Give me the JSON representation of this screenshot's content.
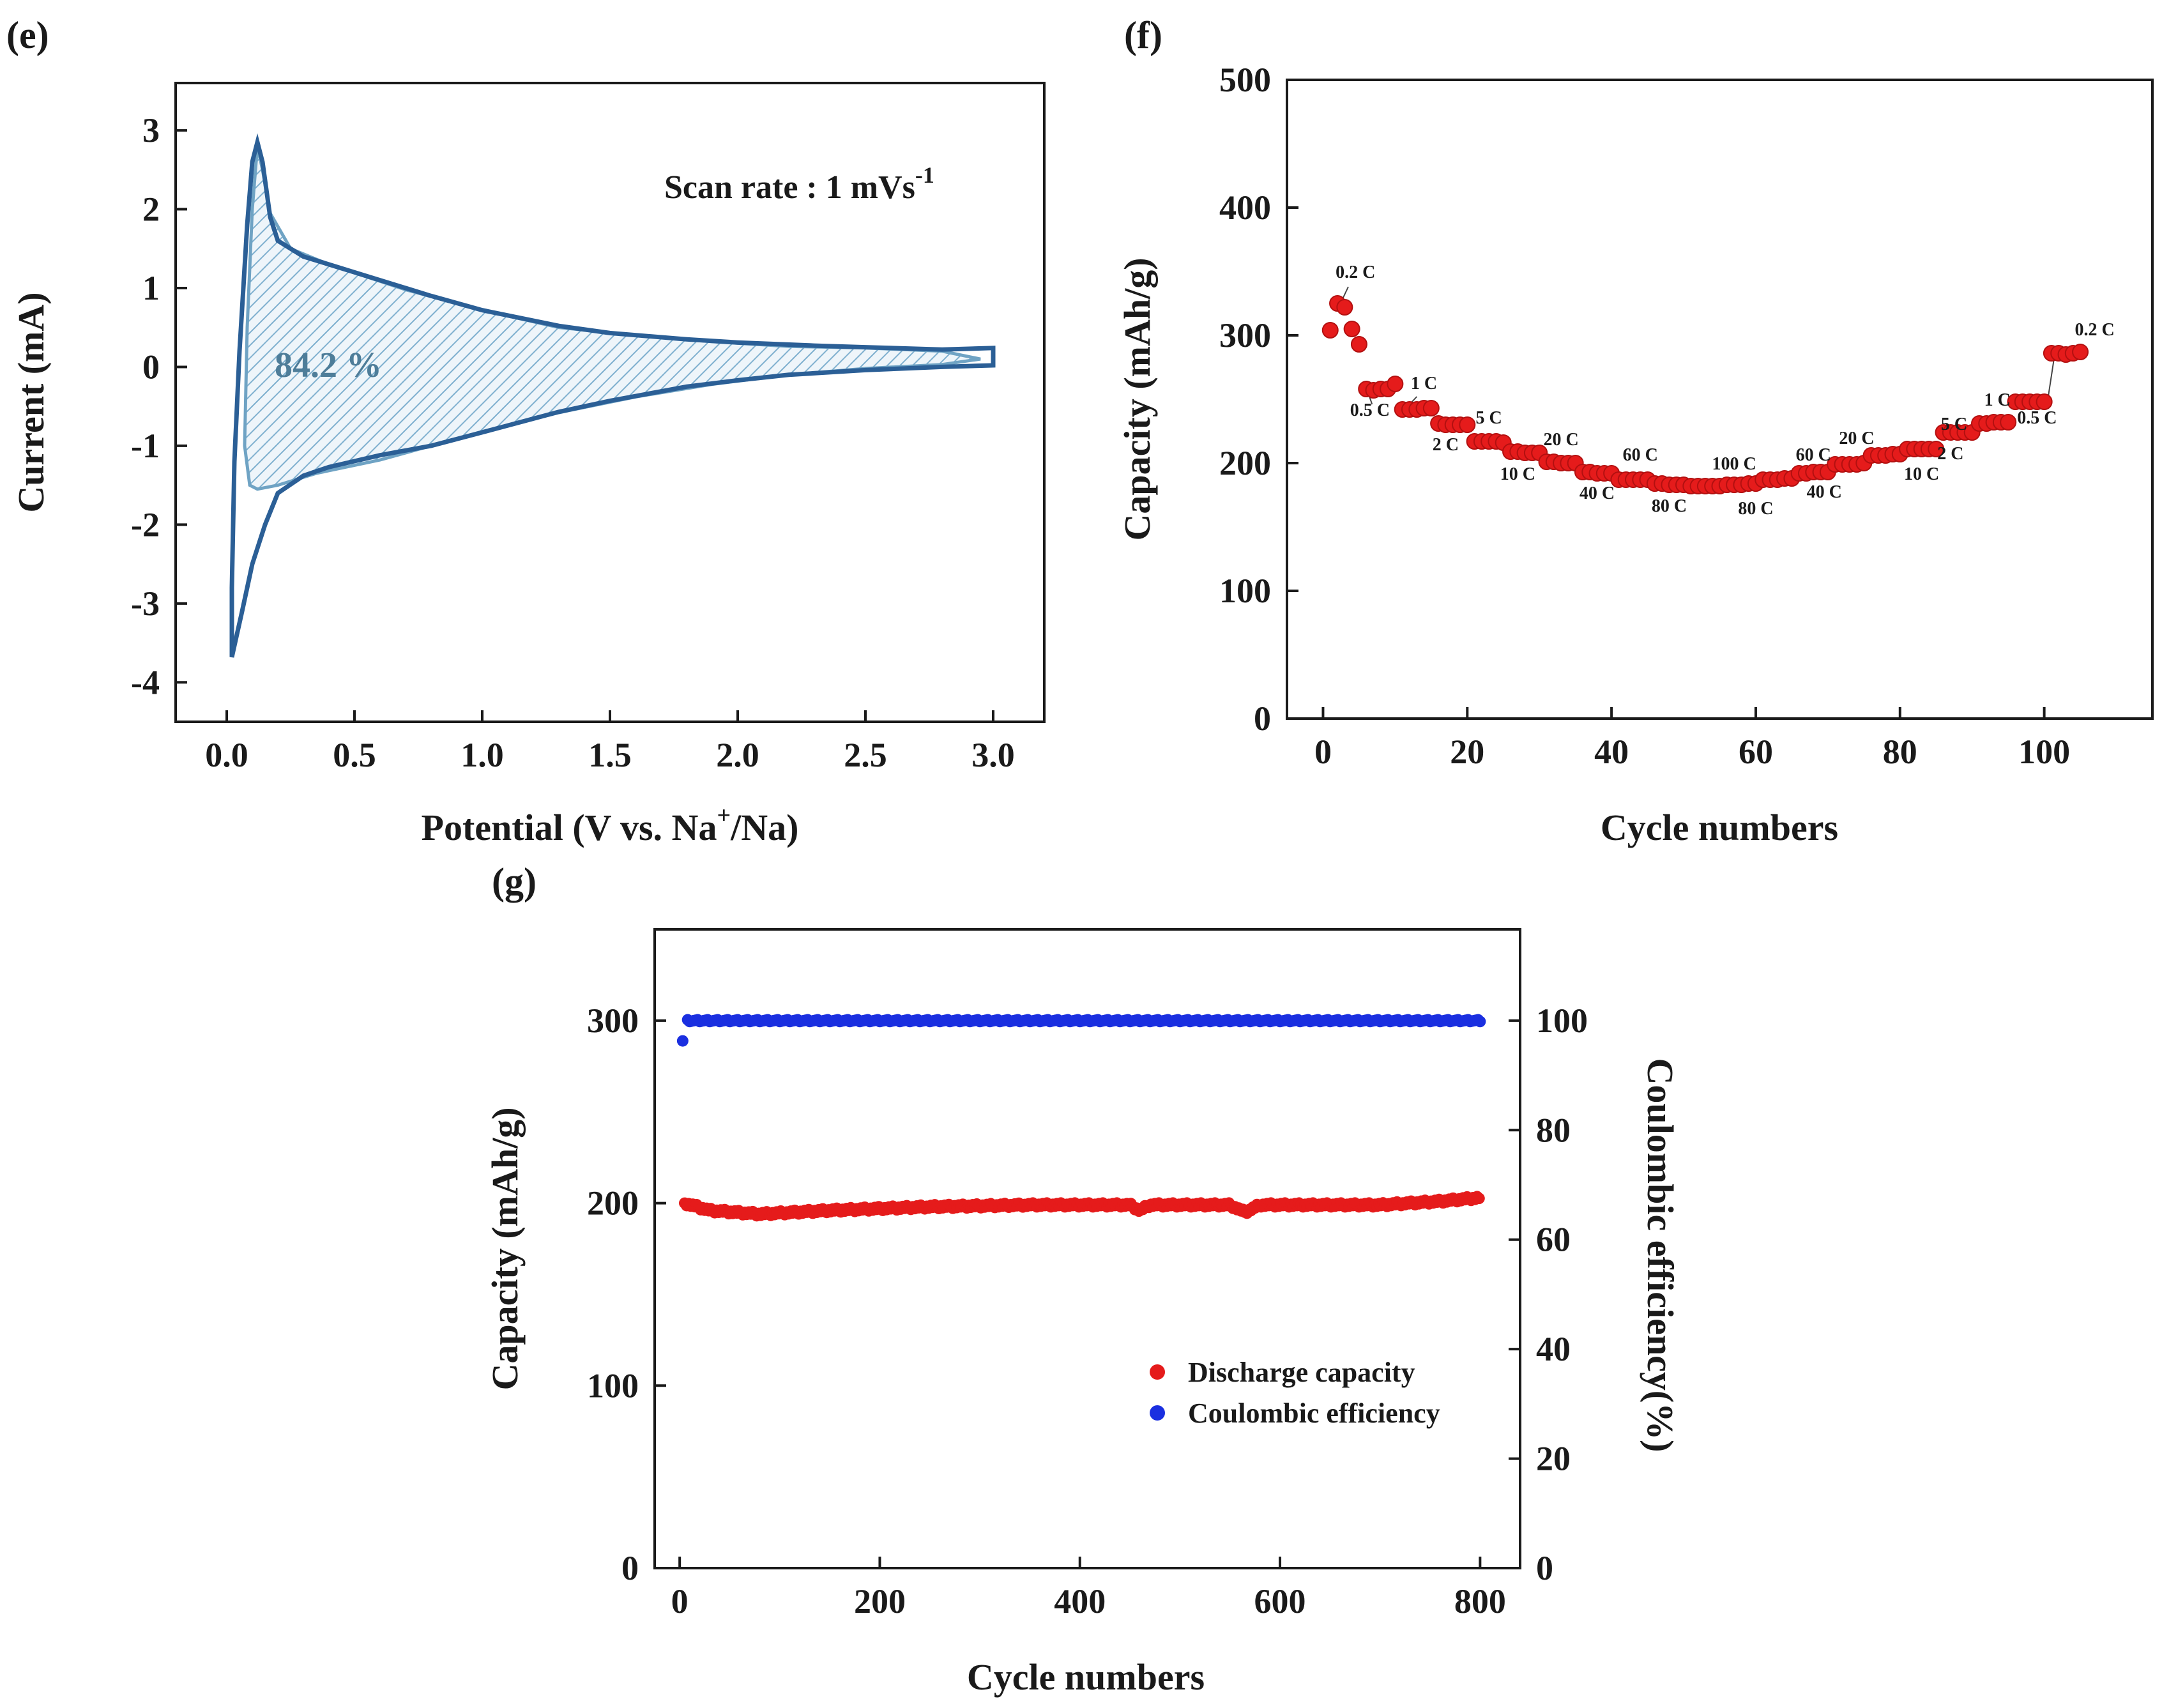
{
  "chart_data": [
    {
      "panel": "(e)",
      "type": "line",
      "xlabel_main": "Potential (V vs. Na",
      "xlabel_sup": "+",
      "xlabel_tail": "/Na)",
      "ylabel": "Current (mA)",
      "xlim": [
        -0.2,
        3.2
      ],
      "ylim": [
        -4.5,
        3.6
      ],
      "xticks": [
        "0.0",
        "0.5",
        "1.0",
        "1.5",
        "2.0",
        "2.5",
        "3.0"
      ],
      "xtick_values": [
        0,
        0.5,
        1.0,
        1.5,
        2.0,
        2.5,
        3.0
      ],
      "yticks": [
        "3",
        "2",
        "1",
        "0",
        "-1",
        "-2",
        "-3",
        "-4"
      ],
      "ytick_values": [
        3,
        2,
        1,
        0,
        -1,
        -2,
        -3,
        -4
      ],
      "annotation_main": "Scan rate : 1 mVs",
      "annotation_sup": "-1",
      "capacitive_label": "84.2 %",
      "line_color": "#2b5f96",
      "fill_color": "#6fa3c4",
      "outer_curve": [
        [
          0.02,
          -3.68
        ],
        [
          0.02,
          -2.8
        ],
        [
          0.03,
          -1.2
        ],
        [
          0.05,
          0.2
        ],
        [
          0.08,
          1.8
        ],
        [
          0.1,
          2.6
        ],
        [
          0.12,
          2.85
        ],
        [
          0.14,
          2.6
        ],
        [
          0.17,
          1.9
        ],
        [
          0.2,
          1.6
        ],
        [
          0.3,
          1.4
        ],
        [
          0.5,
          1.2
        ],
        [
          0.8,
          0.9
        ],
        [
          1.0,
          0.72
        ],
        [
          1.3,
          0.52
        ],
        [
          1.5,
          0.43
        ],
        [
          1.8,
          0.35
        ],
        [
          2.0,
          0.31
        ],
        [
          2.3,
          0.27
        ],
        [
          2.5,
          0.25
        ],
        [
          2.8,
          0.22
        ],
        [
          3.0,
          0.24
        ],
        [
          3.0,
          0.02
        ],
        [
          2.8,
          0.0
        ],
        [
          2.5,
          -0.04
        ],
        [
          2.2,
          -0.1
        ],
        [
          2.0,
          -0.17
        ],
        [
          1.8,
          -0.25
        ],
        [
          1.5,
          -0.43
        ],
        [
          1.3,
          -0.57
        ],
        [
          1.0,
          -0.83
        ],
        [
          0.8,
          -1.0
        ],
        [
          0.6,
          -1.12
        ],
        [
          0.4,
          -1.27
        ],
        [
          0.3,
          -1.38
        ],
        [
          0.2,
          -1.6
        ],
        [
          0.15,
          -2.0
        ],
        [
          0.1,
          -2.5
        ],
        [
          0.06,
          -3.1
        ],
        [
          0.02,
          -3.68
        ]
      ],
      "inner_curve": [
        [
          0.12,
          2.8
        ],
        [
          0.1,
          2.0
        ],
        [
          0.08,
          0.5
        ],
        [
          0.07,
          -1.0
        ],
        [
          0.09,
          -1.5
        ],
        [
          0.12,
          -1.55
        ],
        [
          0.2,
          -1.5
        ],
        [
          0.35,
          -1.35
        ],
        [
          0.6,
          -1.18
        ],
        [
          0.8,
          -1.0
        ],
        [
          1.0,
          -0.82
        ],
        [
          1.3,
          -0.58
        ],
        [
          1.6,
          -0.38
        ],
        [
          1.9,
          -0.22
        ],
        [
          2.2,
          -0.1
        ],
        [
          2.5,
          -0.02
        ],
        [
          2.8,
          0.03
        ],
        [
          2.95,
          0.1
        ],
        [
          2.8,
          0.2
        ],
        [
          2.5,
          0.24
        ],
        [
          2.2,
          0.26
        ],
        [
          1.9,
          0.32
        ],
        [
          1.6,
          0.4
        ],
        [
          1.3,
          0.5
        ],
        [
          1.0,
          0.72
        ],
        [
          0.7,
          0.98
        ],
        [
          0.4,
          1.3
        ],
        [
          0.25,
          1.5
        ],
        [
          0.17,
          1.95
        ],
        [
          0.14,
          2.5
        ],
        [
          0.12,
          2.8
        ]
      ]
    },
    {
      "panel": "(f)",
      "type": "scatter",
      "xlabel": "Cycle numbers",
      "ylabel": "Capacity (mAh/g)",
      "xlim": [
        -5,
        115
      ],
      "ylim": [
        0,
        500
      ],
      "xticks": [
        "0",
        "20",
        "40",
        "60",
        "80",
        "100"
      ],
      "xtick_values": [
        0,
        20,
        40,
        60,
        80,
        100
      ],
      "yticks": [
        "500",
        "400",
        "300",
        "200",
        "100",
        "0"
      ],
      "ytick_values": [
        500,
        400,
        300,
        200,
        100,
        0
      ],
      "marker_color": "#e51b1b",
      "points": [
        [
          1,
          304
        ],
        [
          2,
          325
        ],
        [
          3,
          322
        ],
        [
          4,
          305
        ],
        [
          5,
          293
        ],
        [
          6,
          258
        ],
        [
          7,
          257
        ],
        [
          8,
          258
        ],
        [
          9,
          258
        ],
        [
          10,
          262
        ],
        [
          11,
          242
        ],
        [
          12,
          242
        ],
        [
          13,
          242
        ],
        [
          14,
          243
        ],
        [
          15,
          243
        ],
        [
          16,
          231
        ],
        [
          17,
          230
        ],
        [
          18,
          230
        ],
        [
          19,
          230
        ],
        [
          20,
          230
        ],
        [
          21,
          217
        ],
        [
          22,
          217
        ],
        [
          23,
          217
        ],
        [
          24,
          217
        ],
        [
          25,
          216
        ],
        [
          26,
          209
        ],
        [
          27,
          209
        ],
        [
          28,
          208
        ],
        [
          29,
          208
        ],
        [
          30,
          208
        ],
        [
          31,
          201
        ],
        [
          32,
          201
        ],
        [
          33,
          200
        ],
        [
          34,
          200
        ],
        [
          35,
          200
        ],
        [
          36,
          193
        ],
        [
          37,
          193
        ],
        [
          38,
          192
        ],
        [
          39,
          192
        ],
        [
          40,
          192
        ],
        [
          41,
          187
        ],
        [
          42,
          187
        ],
        [
          43,
          187
        ],
        [
          44,
          187
        ],
        [
          45,
          187
        ],
        [
          46,
          184
        ],
        [
          47,
          184
        ],
        [
          48,
          183
        ],
        [
          49,
          183
        ],
        [
          50,
          183
        ],
        [
          51,
          182
        ],
        [
          52,
          182
        ],
        [
          53,
          182
        ],
        [
          54,
          182
        ],
        [
          55,
          182
        ],
        [
          56,
          183
        ],
        [
          57,
          183
        ],
        [
          58,
          183
        ],
        [
          59,
          184
        ],
        [
          60,
          184
        ],
        [
          61,
          187
        ],
        [
          62,
          187
        ],
        [
          63,
          187
        ],
        [
          64,
          188
        ],
        [
          65,
          188
        ],
        [
          66,
          192
        ],
        [
          67,
          192
        ],
        [
          68,
          193
        ],
        [
          69,
          193
        ],
        [
          70,
          193
        ],
        [
          71,
          199
        ],
        [
          72,
          199
        ],
        [
          73,
          199
        ],
        [
          74,
          199
        ],
        [
          75,
          200
        ],
        [
          76,
          206
        ],
        [
          77,
          206
        ],
        [
          78,
          206
        ],
        [
          79,
          207
        ],
        [
          80,
          207
        ],
        [
          81,
          211
        ],
        [
          82,
          211
        ],
        [
          83,
          211
        ],
        [
          84,
          211
        ],
        [
          85,
          211
        ],
        [
          86,
          224
        ],
        [
          87,
          224
        ],
        [
          88,
          224
        ],
        [
          89,
          224
        ],
        [
          90,
          224
        ],
        [
          91,
          231
        ],
        [
          92,
          231
        ],
        [
          93,
          232
        ],
        [
          94,
          232
        ],
        [
          95,
          232
        ],
        [
          96,
          248
        ],
        [
          97,
          248
        ],
        [
          98,
          248
        ],
        [
          99,
          248
        ],
        [
          100,
          248
        ],
        [
          101,
          286
        ],
        [
          102,
          286
        ],
        [
          103,
          285
        ],
        [
          104,
          286
        ],
        [
          105,
          287
        ]
      ],
      "rate_labels": [
        {
          "text": "0.2 C",
          "x": 4.5,
          "y": 345
        },
        {
          "text": "0.5 C",
          "x": 6.5,
          "y": 237
        },
        {
          "text": "1 C",
          "x": 14,
          "y": 258
        },
        {
          "text": "2 C",
          "x": 17,
          "y": 210
        },
        {
          "text": "5 C",
          "x": 23,
          "y": 231
        },
        {
          "text": "10 C",
          "x": 27,
          "y": 187
        },
        {
          "text": "20 C",
          "x": 33,
          "y": 214
        },
        {
          "text": "40 C",
          "x": 38,
          "y": 172
        },
        {
          "text": "60 C",
          "x": 44,
          "y": 202
        },
        {
          "text": "80 C",
          "x": 48,
          "y": 162
        },
        {
          "text": "100 C",
          "x": 57,
          "y": 195
        },
        {
          "text": "60 C",
          "x": 68,
          "y": 202
        },
        {
          "text": "80 C",
          "x": 60,
          "y": 160
        },
        {
          "text": "40 C",
          "x": 69.5,
          "y": 173
        },
        {
          "text": "20 C",
          "x": 74,
          "y": 215
        },
        {
          "text": "10 C",
          "x": 83,
          "y": 187
        },
        {
          "text": "5 C",
          "x": 87.5,
          "y": 226
        },
        {
          "text": "2 C",
          "x": 87,
          "y": 203
        },
        {
          "text": "1 C",
          "x": 93.5,
          "y": 245
        },
        {
          "text": "0.5 C",
          "x": 99,
          "y": 231
        },
        {
          "text": "0.2 C",
          "x": 107,
          "y": 300
        }
      ]
    },
    {
      "panel": "(g)",
      "type": "scatter",
      "xlabel": "Cycle numbers",
      "ylabel": "Capacity (mAh/g)",
      "ylabel_right": "Coulombic efficiency(%)",
      "xlim": [
        -25,
        840
      ],
      "ylim": [
        0,
        350
      ],
      "ylim_right": [
        0,
        116.67
      ],
      "xticks": [
        "0",
        "200",
        "400",
        "600",
        "800"
      ],
      "xtick_values": [
        0,
        200,
        400,
        600,
        800
      ],
      "yticks": [
        "300",
        "200",
        "100",
        "0"
      ],
      "ytick_values": [
        300,
        200,
        100,
        0
      ],
      "yticks_right": [
        "100",
        "80",
        "60",
        "40",
        "20",
        "0"
      ],
      "ytick_right_values": [
        100,
        80,
        60,
        40,
        20,
        0
      ],
      "series": [
        {
          "name": "Discharge capacity",
          "color": "#e51b1b",
          "axis": "left",
          "trend": [
            [
              5,
              200
            ],
            [
              30,
              196
            ],
            [
              80,
              194
            ],
            [
              150,
              196
            ],
            [
              250,
              198
            ],
            [
              350,
              199
            ],
            [
              450,
              199
            ],
            [
              460,
              196
            ],
            [
              470,
              199
            ],
            [
              550,
              199
            ],
            [
              565,
              195
            ],
            [
              580,
              199
            ],
            [
              650,
              199
            ],
            [
              700,
              199
            ],
            [
              760,
              201
            ],
            [
              800,
              203
            ]
          ]
        },
        {
          "name": "Coulombic efficiency",
          "color": "#1a2fe0",
          "axis": "right",
          "first_point": [
            3,
            96.3
          ],
          "trend": [
            [
              8,
              100
            ],
            [
              300,
              100
            ],
            [
              600,
              100
            ],
            [
              800,
              100
            ]
          ]
        }
      ]
    }
  ]
}
